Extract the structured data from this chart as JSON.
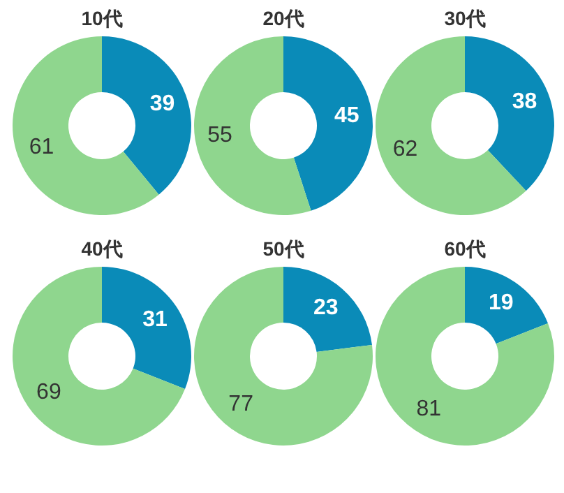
{
  "chart_data": [
    {
      "type": "donut",
      "title": "10代",
      "categories": [
        null,
        null
      ],
      "values": [
        39,
        61
      ],
      "colors": [
        "#0a8bb8",
        "#8fd68e"
      ],
      "data_labels": true
    },
    {
      "type": "donut",
      "title": "20代",
      "categories": [
        null,
        null
      ],
      "values": [
        45,
        55
      ],
      "colors": [
        "#0a8bb8",
        "#8fd68e"
      ],
      "data_labels": true
    },
    {
      "type": "donut",
      "title": "30代",
      "categories": [
        null,
        null
      ],
      "values": [
        38,
        62
      ],
      "colors": [
        "#0a8bb8",
        "#8fd68e"
      ],
      "data_labels": true
    },
    {
      "type": "donut",
      "title": "40代",
      "categories": [
        null,
        null
      ],
      "values": [
        31,
        69
      ],
      "colors": [
        "#0a8bb8",
        "#8fd68e"
      ],
      "data_labels": true
    },
    {
      "type": "donut",
      "title": "50代",
      "categories": [
        null,
        null
      ],
      "values": [
        23,
        77
      ],
      "colors": [
        "#0a8bb8",
        "#8fd68e"
      ],
      "data_labels": true
    },
    {
      "type": "donut",
      "title": "60代",
      "categories": [
        null,
        null
      ],
      "values": [
        19,
        81
      ],
      "colors": [
        "#0a8bb8",
        "#8fd68e"
      ],
      "data_labels": true
    }
  ]
}
